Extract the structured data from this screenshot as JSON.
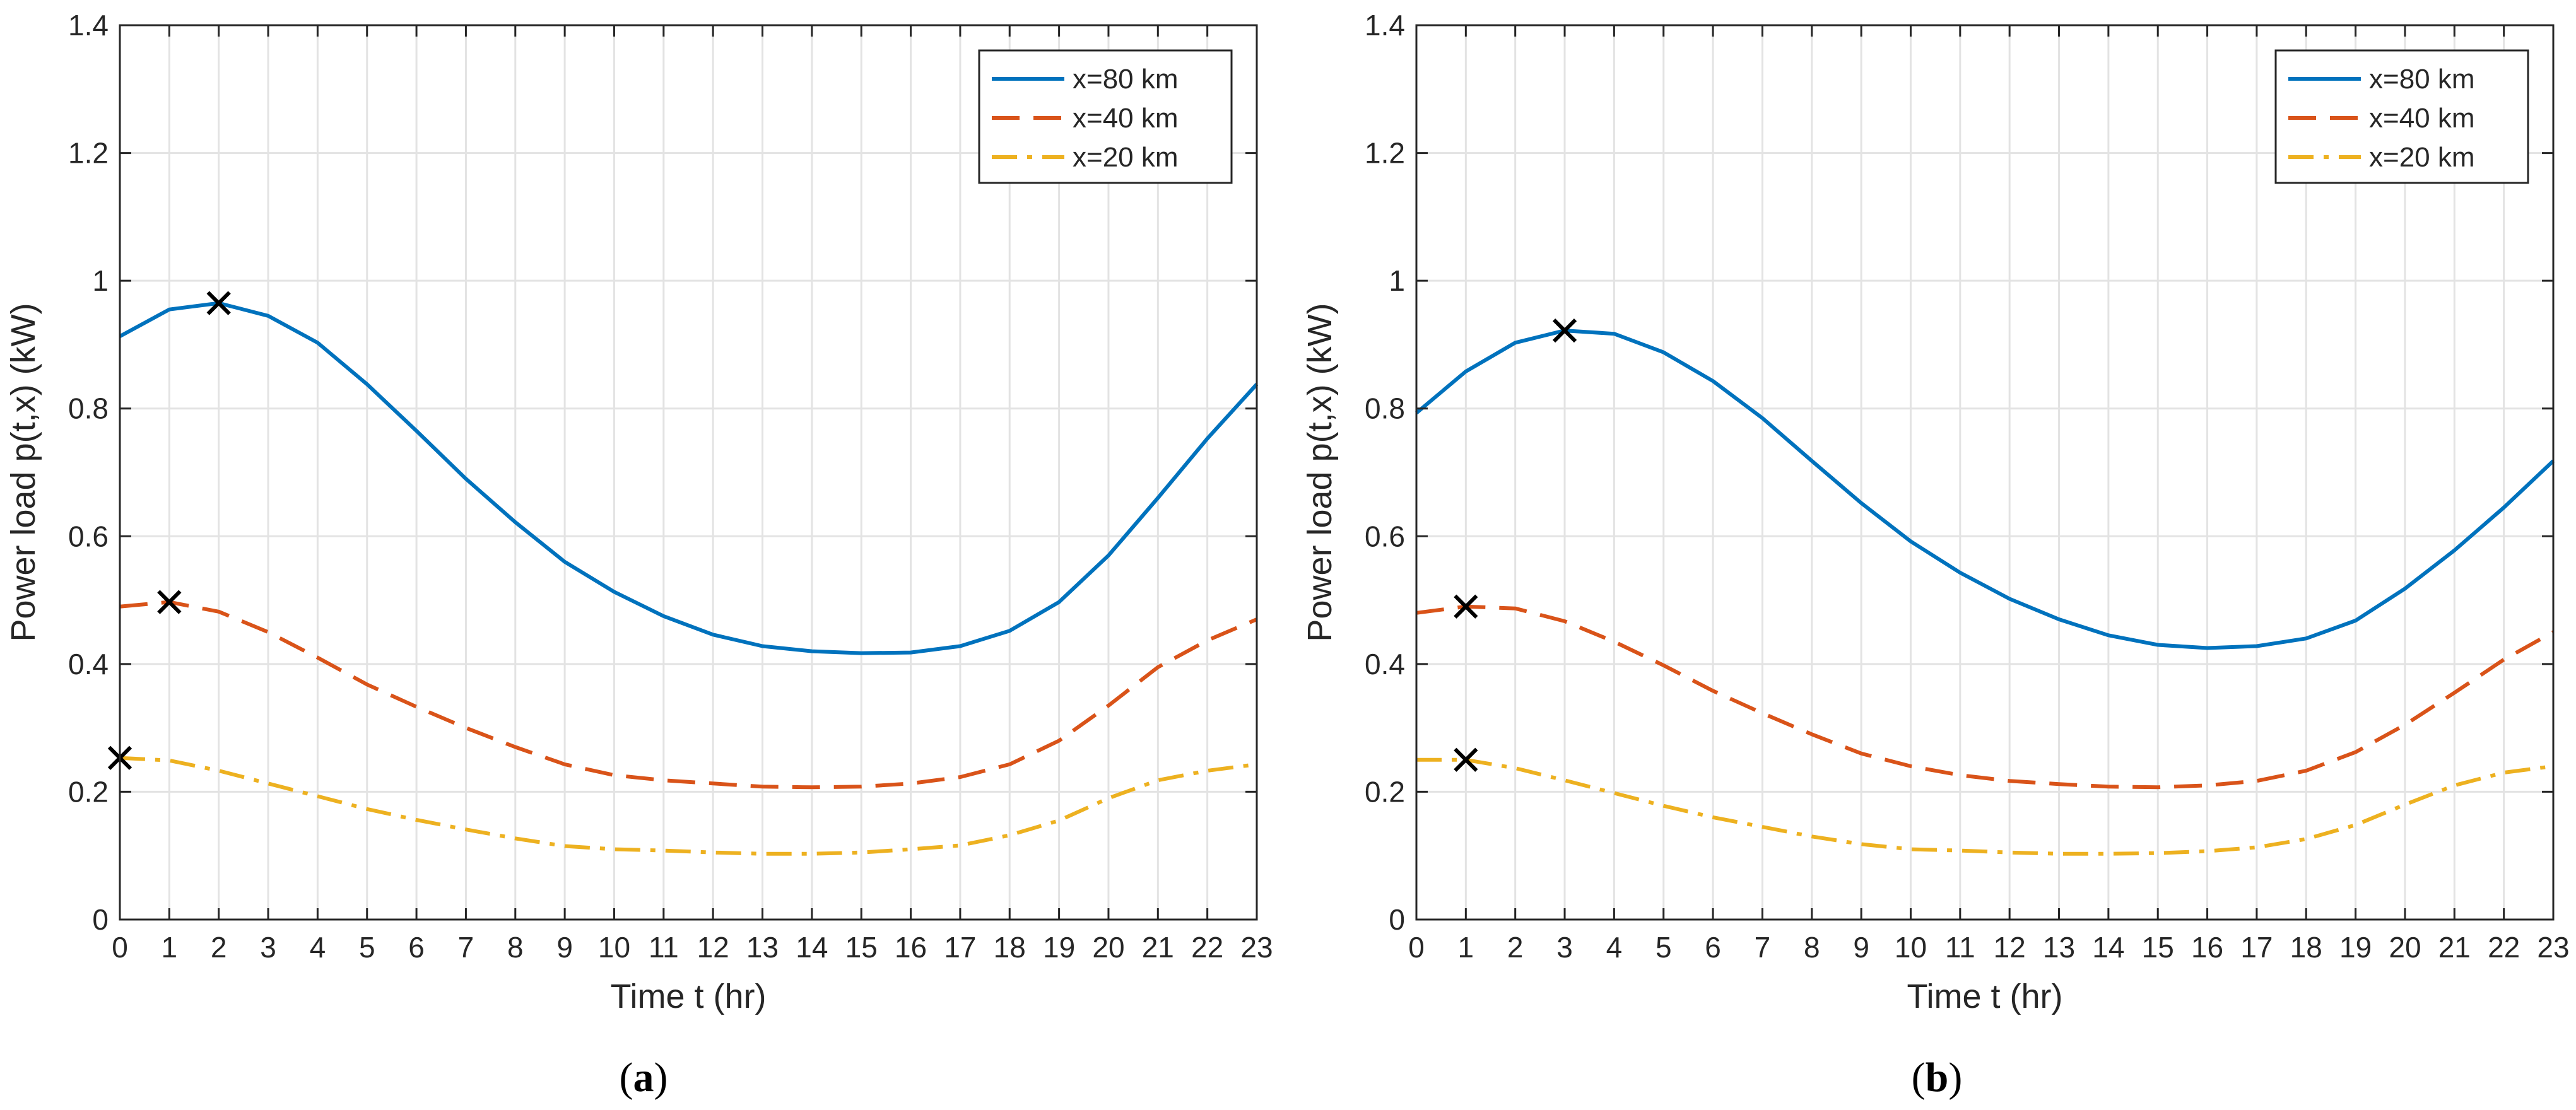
{
  "chart_data": [
    {
      "type": "line",
      "panel_label": "a",
      "caption_open": "(",
      "caption_close": ")",
      "xlabel": "Time t (hr)",
      "ylabel": "Power load p(t,x) (kW)",
      "xlim": [
        0,
        23
      ],
      "ylim": [
        0,
        1.4
      ],
      "x_ticks": [
        0,
        1,
        2,
        3,
        4,
        5,
        6,
        7,
        8,
        9,
        10,
        11,
        12,
        13,
        14,
        15,
        16,
        17,
        18,
        19,
        20,
        21,
        22,
        23
      ],
      "y_ticks": [
        0,
        0.2,
        0.4,
        0.6,
        0.8,
        1,
        1.2,
        1.4
      ],
      "y_tick_labels": [
        "0",
        "0.2",
        "0.4",
        "0.6",
        "0.8",
        "1",
        "1.2",
        "1.4"
      ],
      "grid": true,
      "legend_position": "top-right",
      "x": [
        0,
        1,
        2,
        3,
        4,
        5,
        6,
        7,
        8,
        9,
        10,
        11,
        12,
        13,
        14,
        15,
        16,
        17,
        18,
        19,
        20,
        21,
        22,
        23
      ],
      "series": [
        {
          "name": "x=80 km",
          "color": "#0072BD",
          "style": "solid",
          "values": [
            0.913,
            0.955,
            0.965,
            0.945,
            0.903,
            0.838,
            0.765,
            0.69,
            0.622,
            0.56,
            0.513,
            0.475,
            0.446,
            0.428,
            0.42,
            0.417,
            0.418,
            0.428,
            0.452,
            0.497,
            0.57,
            0.66,
            0.753,
            0.838
          ],
          "marker": {
            "x": 2,
            "y": 0.965
          }
        },
        {
          "name": "x=40 km",
          "color": "#D95319",
          "style": "dashed",
          "values": [
            0.49,
            0.497,
            0.482,
            0.45,
            0.41,
            0.368,
            0.333,
            0.3,
            0.27,
            0.243,
            0.226,
            0.218,
            0.213,
            0.208,
            0.207,
            0.208,
            0.213,
            0.223,
            0.243,
            0.28,
            0.335,
            0.395,
            0.437,
            0.47
          ],
          "marker": {
            "x": 1,
            "y": 0.497
          }
        },
        {
          "name": "x=20 km",
          "color": "#EDB120",
          "style": "dashdot",
          "values": [
            0.253,
            0.249,
            0.233,
            0.213,
            0.193,
            0.173,
            0.156,
            0.141,
            0.127,
            0.115,
            0.11,
            0.108,
            0.105,
            0.103,
            0.103,
            0.105,
            0.11,
            0.116,
            0.132,
            0.155,
            0.19,
            0.218,
            0.233,
            0.243
          ],
          "marker": {
            "x": 0,
            "y": 0.253
          }
        }
      ]
    },
    {
      "type": "line",
      "panel_label": "b",
      "caption_open": "(",
      "caption_close": ")",
      "xlabel": "Time t (hr)",
      "ylabel": "Power load p(t,x) (kW)",
      "xlim": [
        0,
        23
      ],
      "ylim": [
        0,
        1.4
      ],
      "x_ticks": [
        0,
        1,
        2,
        3,
        4,
        5,
        6,
        7,
        8,
        9,
        10,
        11,
        12,
        13,
        14,
        15,
        16,
        17,
        18,
        19,
        20,
        21,
        22,
        23
      ],
      "y_ticks": [
        0,
        0.2,
        0.4,
        0.6,
        0.8,
        1,
        1.2,
        1.4
      ],
      "y_tick_labels": [
        "0",
        "0.2",
        "0.4",
        "0.6",
        "0.8",
        "1",
        "1.2",
        "1.4"
      ],
      "grid": true,
      "legend_position": "top-right",
      "x": [
        0,
        1,
        2,
        3,
        4,
        5,
        6,
        7,
        8,
        9,
        10,
        11,
        12,
        13,
        14,
        15,
        16,
        17,
        18,
        19,
        20,
        21,
        22,
        23
      ],
      "series": [
        {
          "name": "x=80 km",
          "color": "#0072BD",
          "style": "solid",
          "values": [
            0.793,
            0.858,
            0.903,
            0.922,
            0.917,
            0.888,
            0.843,
            0.785,
            0.718,
            0.652,
            0.592,
            0.543,
            0.502,
            0.47,
            0.445,
            0.43,
            0.425,
            0.428,
            0.44,
            0.468,
            0.518,
            0.578,
            0.645,
            0.718
          ],
          "marker": {
            "x": 3,
            "y": 0.922
          }
        },
        {
          "name": "x=40 km",
          "color": "#D95319",
          "style": "dashed",
          "values": [
            0.48,
            0.49,
            0.487,
            0.467,
            0.435,
            0.398,
            0.358,
            0.323,
            0.29,
            0.26,
            0.24,
            0.226,
            0.217,
            0.212,
            0.208,
            0.207,
            0.21,
            0.217,
            0.233,
            0.262,
            0.305,
            0.355,
            0.407,
            0.45
          ],
          "marker": {
            "x": 1,
            "y": 0.49
          }
        },
        {
          "name": "x=20 km",
          "color": "#EDB120",
          "style": "dashdot",
          "values": [
            0.25,
            0.25,
            0.237,
            0.218,
            0.198,
            0.178,
            0.16,
            0.145,
            0.13,
            0.118,
            0.11,
            0.108,
            0.105,
            0.103,
            0.103,
            0.104,
            0.107,
            0.113,
            0.126,
            0.148,
            0.18,
            0.21,
            0.23,
            0.24
          ],
          "marker": {
            "x": 1,
            "y": 0.25
          }
        }
      ]
    }
  ]
}
